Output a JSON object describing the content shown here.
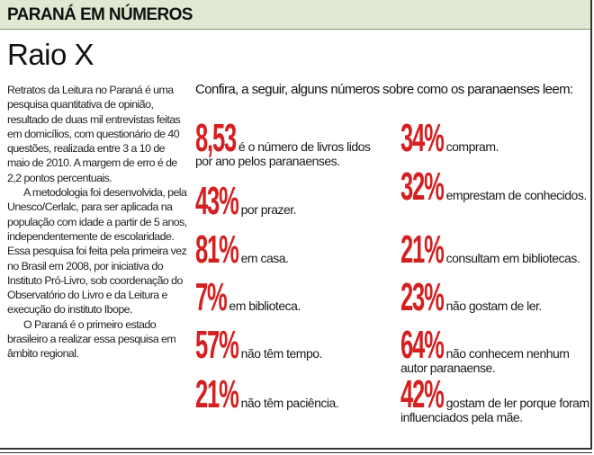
{
  "header": {
    "section": "PARANÁ EM NÚMEROS",
    "background": "#dfe9d1"
  },
  "title": "Raio X",
  "body": {
    "paragraphs": [
      "Retratos da Leitura no Paraná é uma pesquisa quantitativa de opinião, resultado de duas mil entrevistas feitas em domicílios, com questionário de 40 questões, realizada entre 3 a 10 de maio de 2010. A margem de erro é de 2,2 pontos percentuais.",
      "A metodologia foi desenvolvida, pela Unesco/Cerlalc, para ser aplicada na população com idade a partir de 5 anos, independentemente de escolaridade. Essa pesquisa foi feita pela primeira vez no Brasil em 2008, por iniciativa do Instituto Pró-Livro, sob coordenação do Observatório do Livro e da Leitura e execução do instituto Ibope.",
      "O Paraná é o primeiro estado brasileiro a realizar essa pesquisa em âmbito regional."
    ]
  },
  "intro": "Confira, a seguir, alguns números sobre como os paranaenses leem:",
  "accent_color": "#d42020",
  "stats": [
    {
      "value": "8,53",
      "text": "é o número de livros lidos por ano pelos paranaenses."
    },
    {
      "value": "43%",
      "text": "por prazer."
    },
    {
      "value": "81%",
      "text": "em casa."
    },
    {
      "value": "7%",
      "text": "em biblioteca."
    },
    {
      "value": "57%",
      "text": "não têm tempo."
    },
    {
      "value": "21%",
      "text": "não têm paciência."
    },
    {
      "value": "34%",
      "text": "compram."
    },
    {
      "value": "32%",
      "text": "emprestam de conhecidos."
    },
    {
      "value": "21%",
      "text": "consultam em bibliotecas."
    },
    {
      "value": "23%",
      "text": "não gostam de ler."
    },
    {
      "value": "64%",
      "text": "não conhecem nenhum autor paranaense."
    },
    {
      "value": "42%",
      "text": "gostam de ler porque foram influenciados pela mãe."
    }
  ]
}
